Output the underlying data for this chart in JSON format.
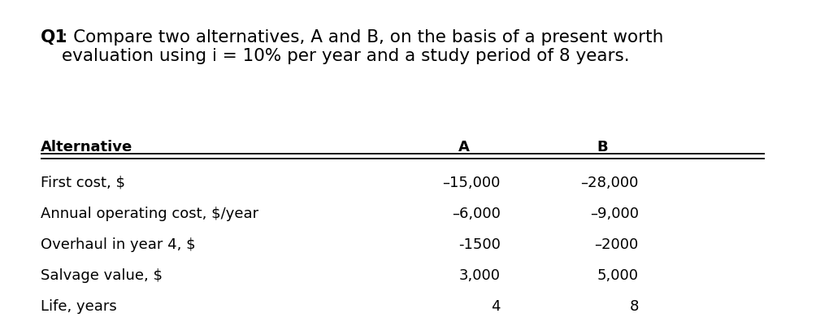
{
  "title_bold": "Q1",
  "title_colon": ": Compare two alternatives, A and B, on the basis of a present worth\nevaluation using i = 10% per year and a study period of 8 years.",
  "col_header": [
    "Alternative",
    "A",
    "B"
  ],
  "rows": [
    [
      "First cost, $",
      "–15,000",
      "–28,000"
    ],
    [
      "Annual operating cost, $/year",
      "–6,000",
      "–9,000"
    ],
    [
      "Overhaul in year 4, $",
      "-1500",
      "–2000"
    ],
    [
      "Salvage value, $",
      "3,000",
      "5,000"
    ],
    [
      "Life, years",
      "4",
      "8"
    ]
  ],
  "fontsize": 13.0,
  "title_fontsize": 15.5,
  "bg_color": "#ffffff",
  "text_color": "#000000"
}
